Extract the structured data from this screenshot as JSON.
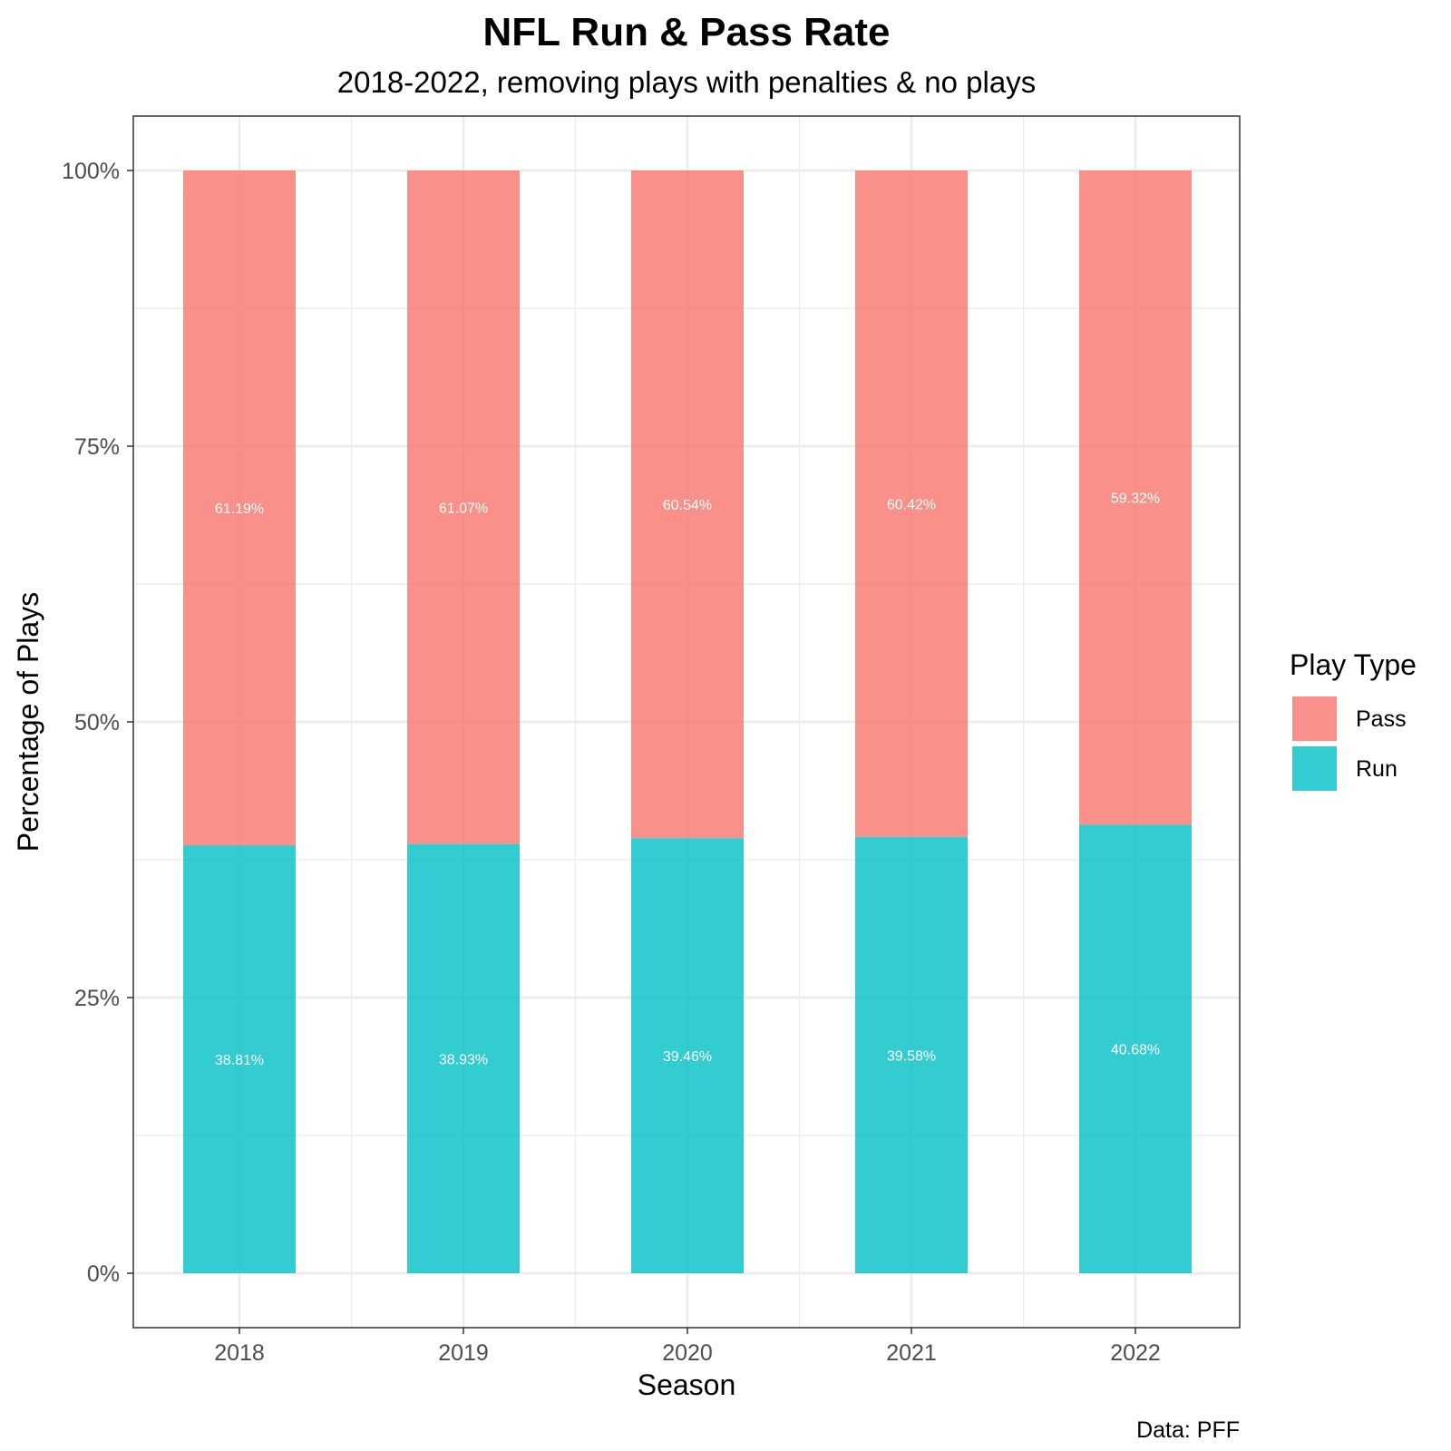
{
  "chart_data": {
    "type": "bar",
    "stacked": true,
    "title": "NFL Run & Pass Rate",
    "subtitle": "2018-2022, removing plays with penalties & no plays",
    "xlabel": "Season",
    "ylabel": "Percentage of Plays",
    "categories": [
      "2018",
      "2019",
      "2020",
      "2021",
      "2022"
    ],
    "series": [
      {
        "name": "Pass",
        "color": "#F8766D",
        "values": [
          61.19,
          61.07,
          60.54,
          60.42,
          59.32
        ],
        "labels": [
          "61.19%",
          "61.07%",
          "60.54%",
          "60.42%",
          "59.32%"
        ]
      },
      {
        "name": "Run",
        "color": "#00BFC4",
        "values": [
          38.81,
          38.93,
          39.46,
          39.58,
          40.68
        ],
        "labels": [
          "38.81%",
          "38.93%",
          "39.46%",
          "39.58%",
          "40.68%"
        ]
      }
    ],
    "ylim": [
      0,
      100
    ],
    "yticks": [
      0,
      25,
      50,
      75,
      100
    ],
    "ytick_labels": [
      "0%",
      "25%",
      "50%",
      "75%",
      "100%"
    ],
    "grid": true,
    "legend": {
      "title": "Play Type",
      "position": "right"
    },
    "caption": "Data: PFF"
  }
}
